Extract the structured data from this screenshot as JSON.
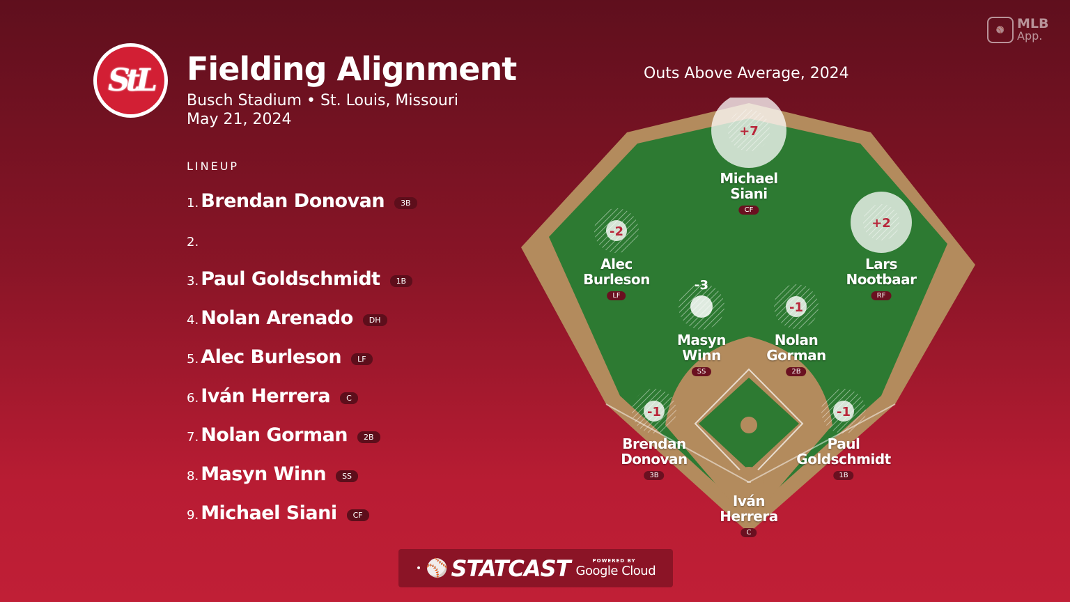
{
  "header": {
    "logo_text": "StL",
    "title": "Fielding Alignment",
    "venue": "Busch Stadium • St. Louis, Missouri",
    "date": "May 21, 2024"
  },
  "badge": {
    "brand": "MLB",
    "suffix": "App."
  },
  "lineup": {
    "label": "LINEUP",
    "items": [
      {
        "num": "1.",
        "name": "Brendan Donovan",
        "pos": "3B"
      },
      {
        "num": "2.",
        "name": "",
        "pos": ""
      },
      {
        "num": "3.",
        "name": "Paul Goldschmidt",
        "pos": "1B"
      },
      {
        "num": "4.",
        "name": "Nolan Arenado",
        "pos": "DH"
      },
      {
        "num": "5.",
        "name": "Alec Burleson",
        "pos": "LF"
      },
      {
        "num": "6.",
        "name": "Iván Herrera",
        "pos": "C"
      },
      {
        "num": "7.",
        "name": "Nolan Gorman",
        "pos": "2B"
      },
      {
        "num": "8.",
        "name": "Masyn Winn",
        "pos": "SS"
      },
      {
        "num": "9.",
        "name": "Michael Siani",
        "pos": "CF"
      }
    ]
  },
  "field": {
    "title": "Outs Above Average, 2024",
    "players": [
      {
        "id": "cf",
        "name": "Michael\nSiani",
        "pos": "CF",
        "oaa": "+7",
        "oaa_value": 7
      },
      {
        "id": "lf",
        "name": "Alec\nBurleson",
        "pos": "LF",
        "oaa": "-2",
        "oaa_value": -2
      },
      {
        "id": "rf",
        "name": "Lars\nNootbaar",
        "pos": "RF",
        "oaa": "+2",
        "oaa_value": 2
      },
      {
        "id": "ss",
        "name": "Masyn\nWinn",
        "pos": "SS",
        "oaa": "-3",
        "oaa_value": -3
      },
      {
        "id": "2b",
        "name": "Nolan\nGorman",
        "pos": "2B",
        "oaa": "-1",
        "oaa_value": -1
      },
      {
        "id": "3b",
        "name": "Brendan\nDonovan",
        "pos": "3B",
        "oaa": "-1",
        "oaa_value": -1
      },
      {
        "id": "1b",
        "name": "Paul\nGoldschmidt",
        "pos": "1B",
        "oaa": "-1",
        "oaa_value": -1
      },
      {
        "id": "c",
        "name": "Iván\nHerrera",
        "pos": "C",
        "oaa": "–",
        "oaa_value": null
      }
    ]
  },
  "footer": {
    "brand": "STATCAST",
    "powered_by": "POWERED BY",
    "partner": "Google Cloud"
  },
  "colors": {
    "grass": "#2d7a32",
    "dirt": "#b38b5d",
    "bg_top": "#5f0f1d",
    "bg_bottom": "#c01f36",
    "oaa_text": "#b8263a"
  }
}
